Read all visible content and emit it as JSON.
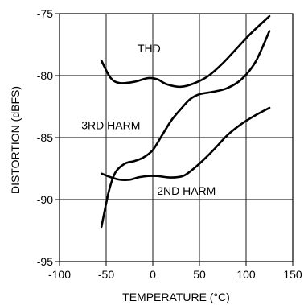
{
  "chart_data": {
    "type": "line",
    "title": "",
    "xlabel": "TEMPERATURE (°C)",
    "ylabel": "DISTORTION (dBFS)",
    "xlim": [
      -100,
      150
    ],
    "ylim": [
      -95,
      -75
    ],
    "xticks": [
      -100,
      -50,
      0,
      50,
      100,
      150
    ],
    "yticks": [
      -95,
      -90,
      -85,
      -80,
      -75
    ],
    "grid": true,
    "series": [
      {
        "name": "THD",
        "label_at": [
          -4,
          -77.8
        ],
        "x": [
          -55,
          -45,
          -35,
          -20,
          -5,
          5,
          15,
          30,
          45,
          60,
          75,
          90,
          105,
          125
        ],
        "y": [
          -78.8,
          -80.2,
          -80.6,
          -80.5,
          -80.2,
          -80.3,
          -80.7,
          -80.9,
          -80.6,
          -80.0,
          -79.0,
          -77.8,
          -76.6,
          -75.2
        ]
      },
      {
        "name": "3RD HARM",
        "label_at": [
          -45,
          -84.0
        ],
        "x": [
          -55,
          -47,
          -40,
          -30,
          -20,
          -10,
          0,
          10,
          20,
          30,
          40,
          50,
          65,
          80,
          95,
          110,
          125
        ],
        "y": [
          -92.2,
          -89.3,
          -87.8,
          -87.1,
          -86.9,
          -86.6,
          -86.0,
          -84.8,
          -83.6,
          -82.7,
          -81.9,
          -81.5,
          -81.3,
          -81.0,
          -80.3,
          -78.9,
          -76.4
        ]
      },
      {
        "name": "2ND HARM",
        "label_at": [
          36,
          -89.3
        ],
        "x": [
          -55,
          -45,
          -35,
          -25,
          -15,
          -5,
          5,
          15,
          25,
          35,
          50,
          65,
          80,
          95,
          110,
          125
        ],
        "y": [
          -87.9,
          -88.2,
          -88.4,
          -88.4,
          -88.2,
          -88.1,
          -88.1,
          -88.2,
          -88.2,
          -88.0,
          -87.1,
          -86.0,
          -84.8,
          -83.9,
          -83.2,
          -82.6
        ]
      }
    ]
  }
}
